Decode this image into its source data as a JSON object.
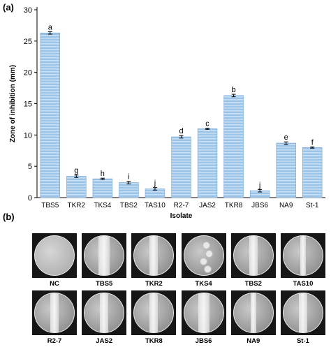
{
  "panel_a_label": "(a)",
  "panel_b_label": "(b)",
  "chart_data": {
    "type": "bar",
    "xlabel": "Isolate",
    "ylabel": "Zone of inhibition (mm)",
    "ylim": [
      0,
      30
    ],
    "yticks": [
      0,
      5,
      10,
      15,
      20,
      25,
      30
    ],
    "categories": [
      "TBS5",
      "TKR2",
      "TKS4",
      "TBS2",
      "TAS10",
      "R2-7",
      "JAS2",
      "TKR8",
      "JBS6",
      "NA9",
      "St-1"
    ],
    "values": [
      26.3,
      3.4,
      3.0,
      2.4,
      1.4,
      9.7,
      11.0,
      16.3,
      1.1,
      8.7,
      8.0
    ],
    "errors": [
      0.2,
      0.2,
      0.1,
      0.2,
      0.2,
      0.2,
      0.1,
      0.2,
      0.2,
      0.2,
      0.1
    ],
    "letters": [
      "a",
      "g",
      "h",
      "i",
      "j",
      "d",
      "c",
      "b",
      "j",
      "e",
      "f"
    ],
    "grid": false,
    "bar_color": "#9cc3e8",
    "bar_stripe_color": "#c9e0f4",
    "bar_edge_color": "#6fa3d6"
  },
  "plates": {
    "row1": [
      {
        "label": "NC",
        "type": "blank"
      },
      {
        "label": "TBS5",
        "type": "streak-wide"
      },
      {
        "label": "TKR2",
        "type": "streak"
      },
      {
        "label": "TKS4",
        "type": "spots"
      },
      {
        "label": "TBS2",
        "type": "streak"
      },
      {
        "label": "TAS10",
        "type": "streak-thin"
      }
    ],
    "row2": [
      {
        "label": "R2-7",
        "type": "streak"
      },
      {
        "label": "JAS2",
        "type": "streak"
      },
      {
        "label": "TKR8",
        "type": "streak"
      },
      {
        "label": "JBS6",
        "type": "streak-wide"
      },
      {
        "label": "NA9",
        "type": "streak-thin"
      },
      {
        "label": "St-1",
        "type": "streak"
      }
    ]
  }
}
